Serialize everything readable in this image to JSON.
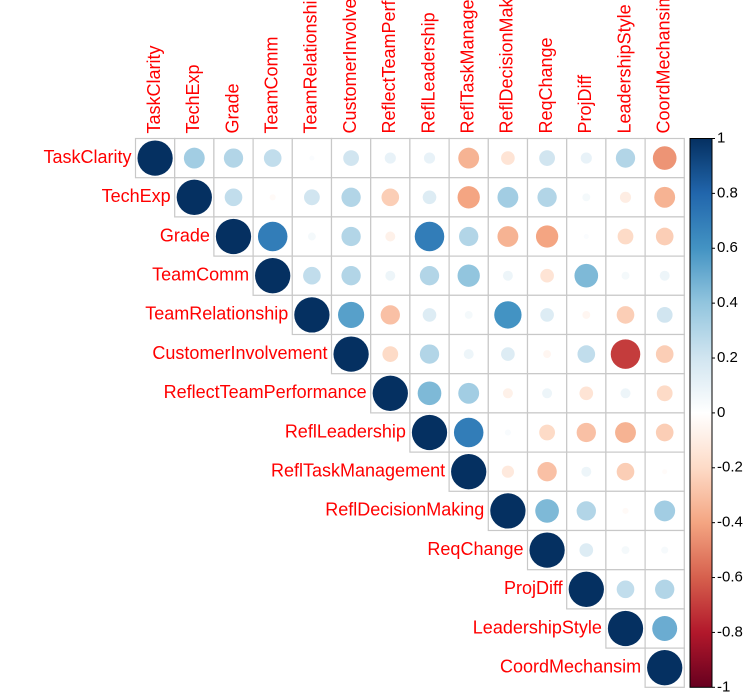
{
  "chart_data": {
    "type": "corrplot",
    "variables": [
      "TaskClarity",
      "TechExp",
      "Grade",
      "TeamComm",
      "TeamRelationship",
      "CustomerInvolvement",
      "ReflectTeamPerformance",
      "ReflLeadership",
      "ReflTaskManagement",
      "ReflDecisionMaking",
      "ReqChange",
      "ProjDiff",
      "LeadershipStyle",
      "CoordMechansim"
    ],
    "values": [
      [
        1,
        0.35,
        0.3,
        0.25,
        0.02,
        0.2,
        0.1,
        0.1,
        -0.35,
        -0.15,
        0.2,
        0.1,
        0.3,
        -0.45
      ],
      [
        1,
        0.25,
        -0.03,
        0.2,
        0.3,
        -0.25,
        0.15,
        -0.4,
        0.35,
        0.3,
        0.05,
        -0.1,
        -0.35
      ],
      [
        1,
        0.7,
        0.05,
        0.3,
        -0.08,
        0.7,
        0.3,
        -0.35,
        -0.4,
        0.02,
        -0.2,
        -0.25
      ],
      [
        1,
        0.25,
        0.3,
        0.08,
        0.3,
        0.4,
        0.08,
        -0.15,
        0.45,
        0.05,
        0.08
      ],
      [
        1,
        0.55,
        -0.3,
        0.15,
        0.05,
        0.6,
        0.15,
        -0.05,
        -0.25,
        0.2
      ],
      [
        1,
        -0.2,
        0.3,
        0.08,
        0.15,
        -0.05,
        0.25,
        -0.7,
        -0.25
      ],
      [
        1,
        0.45,
        0.35,
        -0.08,
        0.08,
        -0.15,
        0.08,
        -0.2
      ],
      [
        1,
        0.7,
        0.03,
        -0.2,
        -0.3,
        -0.35,
        -0.25
      ],
      [
        1,
        -0.12,
        -0.3,
        0.08,
        -0.25,
        -0.02
      ],
      [
        1,
        0.45,
        0.3,
        -0.03,
        0.35
      ],
      [
        1,
        0.15,
        0.05,
        0.04
      ],
      [
        1,
        0.25,
        0.3
      ],
      [
        1,
        0.5
      ],
      [
        1
      ]
    ],
    "colors": [
      "#67001F",
      "#B2182B",
      "#D6604D",
      "#F4A582",
      "#FDDBC7",
      "#FFFFFF",
      "#D1E5F0",
      "#92C5DE",
      "#4393C3",
      "#2166AC",
      "#053061"
    ],
    "clim": [
      -1,
      1
    ],
    "cticks": [
      1,
      0.8,
      0.6,
      0.4,
      0.2,
      0,
      -0.2,
      -0.4,
      -0.6,
      -0.8,
      -1
    ]
  }
}
